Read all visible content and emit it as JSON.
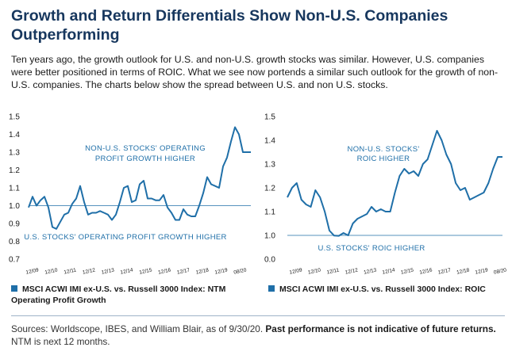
{
  "title": "Growth and Return Differentials Show Non-U.S. Companies Outperforming",
  "intro": "Ten years ago, the growth outlook for U.S. and non-U.S. growth stocks was similar. However, U.S. companies were better positioned in terms of ROIC. What we see now portends a similar such outlook for the growth of non-U.S. companies. The charts below show the spread between U.S. and non U.S. stocks.",
  "colors": {
    "line": "#1f6fa8",
    "title": "#17375e",
    "baseline": "#1f6fa8"
  },
  "chart_data": [
    {
      "type": "line",
      "legend": "MSCI ACWI IMI ex-U.S. vs. Russell 3000 Index: NTM Operating Profit Growth",
      "categories": [
        "12/09",
        "12/10",
        "12/11",
        "12/12",
        "12/13",
        "12/14",
        "12/15",
        "12/16",
        "12/17",
        "12/18",
        "12/19",
        "08/20"
      ],
      "ylim": [
        0.7,
        1.5
      ],
      "yticks": [
        "1.5",
        "1.4",
        "1.3",
        "1.2",
        "1.1",
        "1.0",
        "0.9",
        "0.8",
        "0.7"
      ],
      "baseline": 1.0,
      "annotations": {
        "above": [
          "NON-U.S. STOCKS' OPERATING",
          "PROFIT GROWTH HIGHER"
        ],
        "below": [
          "U.S. STOCKS' OPERATING PROFIT GROWTH HIGHER"
        ]
      },
      "series": [
        {
          "x": [
            0,
            0.4,
            0.8,
            1.2,
            1.6,
            2.0,
            2.4,
            2.8,
            3.2,
            3.6,
            4.0,
            4.4,
            4.8,
            5.2,
            5.6,
            6.0,
            6.4,
            6.8,
            7.2,
            7.6,
            8.0,
            8.4,
            8.8,
            9.2,
            9.6,
            10.0,
            10.4,
            10.8,
            11.2,
            11.6,
            12.0,
            12.4,
            12.8,
            13.2,
            13.6,
            14.0,
            14.4,
            14.8,
            15.2,
            15.6,
            16.0,
            16.4,
            16.8,
            17.2,
            17.6,
            18.0,
            18.4,
            18.8,
            19.2,
            19.6,
            20.0,
            20.4,
            20.8,
            21.2,
            21.6,
            22.0,
            22.4
          ],
          "values": [
            0.99,
            1.05,
            1.0,
            1.03,
            1.05,
            0.99,
            0.88,
            0.87,
            0.91,
            0.95,
            0.96,
            1.01,
            1.04,
            1.11,
            1.02,
            0.95,
            0.96,
            0.96,
            0.97,
            0.96,
            0.95,
            0.92,
            0.95,
            1.02,
            1.1,
            1.11,
            1.02,
            1.03,
            1.12,
            1.14,
            1.04,
            1.04,
            1.03,
            1.03,
            1.06,
            0.99,
            0.96,
            0.92,
            0.92,
            0.98,
            0.95,
            0.94,
            0.94,
            1.0,
            1.07,
            1.16,
            1.12,
            1.11,
            1.1,
            1.22,
            1.27,
            1.36,
            1.44,
            1.4,
            1.3,
            1.3,
            1.3
          ]
        }
      ]
    },
    {
      "type": "line",
      "legend": "MSCI ACWI IMI ex-U.S. vs. Russell 3000 Index: ROIC",
      "categories": [
        "12/09",
        "12/10",
        "12/11",
        "12/12",
        "12/13",
        "12/14",
        "12/15",
        "12/16",
        "12/17",
        "12/18",
        "12/19",
        "08/20"
      ],
      "ylim": [
        0.0,
        1.5
      ],
      "yticks": [
        "1.5",
        "1.4",
        "1.3",
        "1.2",
        "1.1",
        "1.0",
        "0.0"
      ],
      "baseline": 1.0,
      "annotations": {
        "above": [
          "NON-U.S. STOCKS'",
          "ROIC HIGHER"
        ],
        "below": [
          "U.S. STOCKS' ROIC HIGHER"
        ]
      },
      "series": [
        {
          "x": [
            0,
            0.5,
            1.0,
            1.5,
            2.0,
            2.5,
            3.0,
            3.5,
            4.0,
            4.5,
            5.0,
            5.5,
            6.0,
            6.5,
            7.0,
            7.5,
            8.0,
            8.5,
            9.0,
            9.5,
            10.0,
            10.5,
            11.0,
            11.5,
            12.0,
            12.5,
            13.0,
            13.5,
            14.0,
            14.5,
            15.0,
            15.5,
            16.0,
            16.5,
            17.0,
            17.5,
            18.0,
            18.5,
            19.0,
            19.5,
            20.0,
            20.5,
            21.0,
            21.5,
            22.0,
            22.5,
            23.0
          ],
          "values": [
            1.16,
            1.2,
            1.22,
            1.15,
            1.13,
            1.12,
            1.19,
            1.16,
            1.1,
            1.02,
            0.99,
            0.98,
            1.01,
            1.0,
            1.05,
            1.07,
            1.08,
            1.09,
            1.12,
            1.1,
            1.11,
            1.1,
            1.1,
            1.18,
            1.25,
            1.28,
            1.26,
            1.27,
            1.25,
            1.3,
            1.32,
            1.38,
            1.44,
            1.4,
            1.34,
            1.3,
            1.22,
            1.19,
            1.2,
            1.15,
            1.16,
            1.17,
            1.18,
            1.22,
            1.28,
            1.33,
            1.33
          ]
        }
      ]
    }
  ],
  "sources": {
    "prefix": "Sources: Worldscope, IBES, and William Blair, as of 9/30/20.",
    "bold": "Past performance is not indicative of future returns.",
    "suffix": "NTM is next 12 months."
  }
}
